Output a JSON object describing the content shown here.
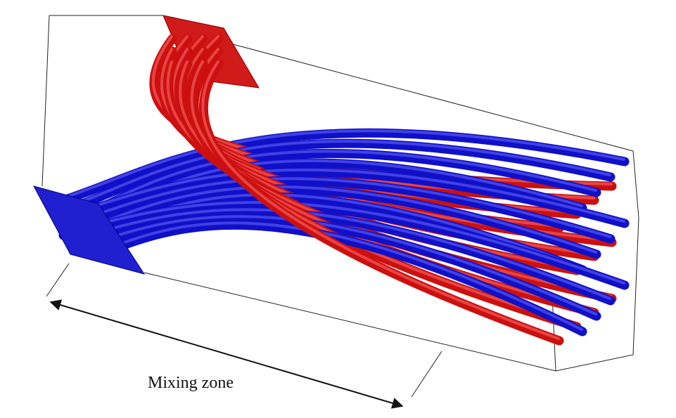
{
  "label": "Mixing zone"
}
